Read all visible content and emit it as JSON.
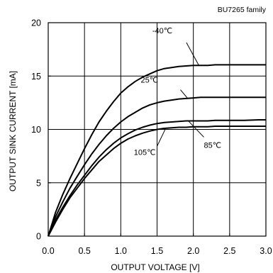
{
  "chart_data": {
    "type": "line",
    "title": "BU7265 family",
    "xlabel": "OUTPUT VOLTAGE [V]",
    "ylabel": "OUTPUT SINK CURRENT [mA]",
    "xlim": [
      0,
      3
    ],
    "ylim": [
      0,
      20
    ],
    "x_ticks": [
      "0.0",
      "0.5",
      "1.0",
      "1.5",
      "2.0",
      "2.5",
      "3.0"
    ],
    "y_ticks": [
      "0",
      "5",
      "10",
      "15",
      "20"
    ],
    "grid": true,
    "legend": "none",
    "line_color": "#000000",
    "series": [
      {
        "name": "-40℃",
        "x": [
          0,
          0.1,
          0.2,
          0.3,
          0.4,
          0.5,
          0.6,
          0.7,
          0.8,
          0.9,
          1.0,
          1.1,
          1.2,
          1.3,
          1.4,
          1.5,
          1.6,
          1.7,
          1.8,
          1.9,
          2.0,
          2.1,
          2.2,
          2.3,
          2.5,
          2.7,
          2.9,
          3.0
        ],
        "y": [
          0,
          2.2,
          3.9,
          5.4,
          6.8,
          8.2,
          9.5,
          10.7,
          11.7,
          12.6,
          13.4,
          14.0,
          14.5,
          14.9,
          15.2,
          15.5,
          15.7,
          15.8,
          15.9,
          15.95,
          16.0,
          16.0,
          16.0,
          16.05,
          16.05,
          16.05,
          16.05,
          16.05
        ]
      },
      {
        "name": "25℃",
        "x": [
          0,
          0.1,
          0.2,
          0.3,
          0.4,
          0.5,
          0.6,
          0.7,
          0.8,
          0.9,
          1.0,
          1.1,
          1.2,
          1.3,
          1.4,
          1.5,
          1.6,
          1.7,
          1.8,
          1.9,
          2.0,
          2.1,
          2.2,
          2.3,
          2.5,
          2.7,
          2.9,
          3.0
        ],
        "y": [
          0,
          1.8,
          3.2,
          4.5,
          5.6,
          6.7,
          7.7,
          8.6,
          9.4,
          10.1,
          10.7,
          11.2,
          11.6,
          12.0,
          12.3,
          12.5,
          12.65,
          12.75,
          12.85,
          12.9,
          12.95,
          13.0,
          13.0,
          13.0,
          13.0,
          13.0,
          13.0,
          13.0
        ]
      },
      {
        "name": "85℃",
        "x": [
          0,
          0.1,
          0.2,
          0.3,
          0.4,
          0.5,
          0.6,
          0.7,
          0.8,
          0.9,
          1.0,
          1.1,
          1.2,
          1.3,
          1.4,
          1.5,
          1.6,
          1.7,
          1.8,
          1.9,
          2.0,
          2.1,
          2.2,
          2.3,
          2.5,
          2.7,
          2.9,
          3.0
        ],
        "y": [
          0,
          1.5,
          2.7,
          3.8,
          4.8,
          5.7,
          6.6,
          7.4,
          8.1,
          8.7,
          9.2,
          9.6,
          9.95,
          10.2,
          10.4,
          10.55,
          10.65,
          10.7,
          10.75,
          10.8,
          10.8,
          10.8,
          10.8,
          10.85,
          10.85,
          10.85,
          10.9,
          10.9
        ]
      },
      {
        "name": "105℃",
        "x": [
          0,
          0.1,
          0.2,
          0.3,
          0.4,
          0.5,
          0.6,
          0.7,
          0.8,
          0.9,
          1.0,
          1.1,
          1.2,
          1.3,
          1.4,
          1.5,
          1.6,
          1.7,
          1.8,
          1.9,
          2.0,
          2.1,
          2.2,
          2.3,
          2.5,
          2.7,
          2.9,
          3.0
        ],
        "y": [
          0,
          1.3,
          2.5,
          3.6,
          4.5,
          5.4,
          6.2,
          7.0,
          7.6,
          8.2,
          8.7,
          9.1,
          9.4,
          9.65,
          9.85,
          10.0,
          10.1,
          10.15,
          10.2,
          10.2,
          10.25,
          10.25,
          10.25,
          10.3,
          10.3,
          10.3,
          10.3,
          10.3
        ]
      }
    ],
    "annotations": [
      {
        "text": "-40℃",
        "series": "-40℃",
        "x": 2.08,
        "y": 15.95
      },
      {
        "text": "25℃",
        "series": "25℃",
        "x": 1.92,
        "y": 12.92
      },
      {
        "text": "85℃",
        "series": "85℃",
        "x": 1.93,
        "y": 10.8
      },
      {
        "text": "105℃",
        "series": "105℃",
        "x": 1.62,
        "y": 10.12
      }
    ]
  }
}
